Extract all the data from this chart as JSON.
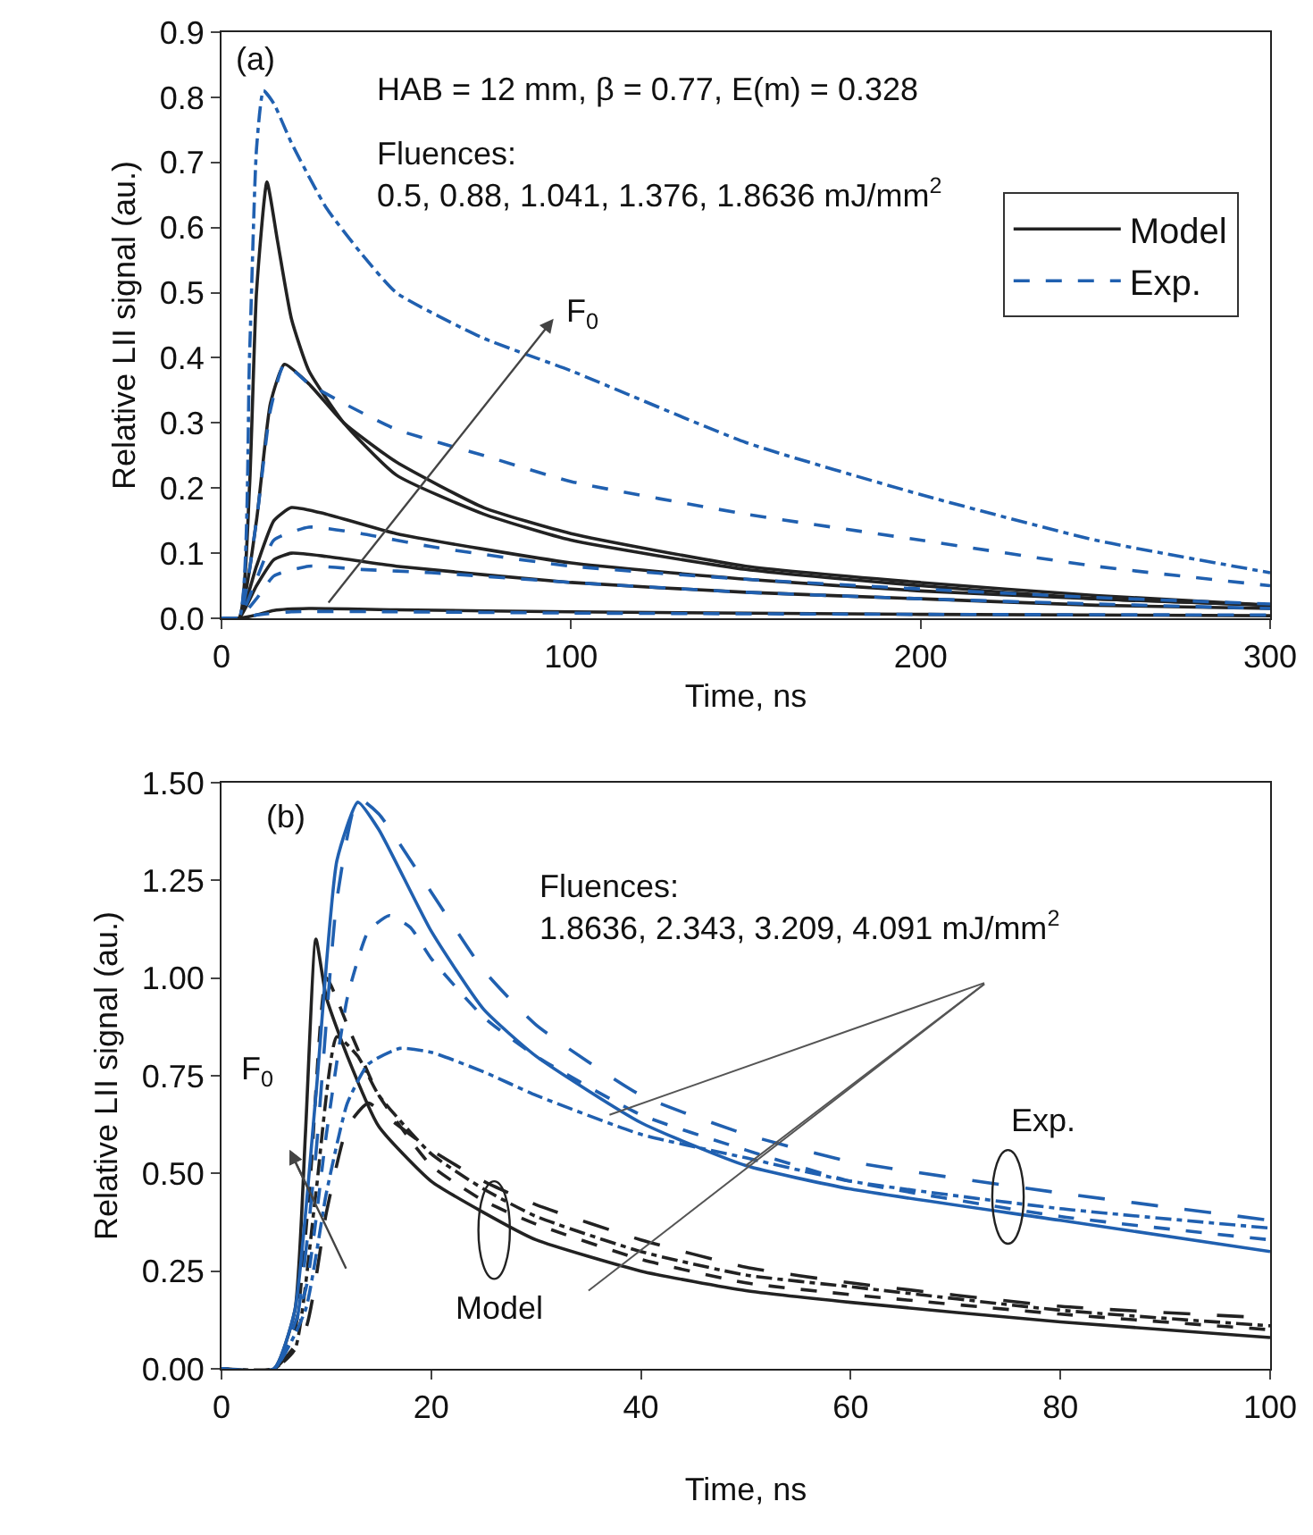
{
  "chart_data": [
    {
      "type": "line",
      "xlabel": "Time, ns",
      "ylabel": "Relative LII signal (au.)",
      "xlim": [
        0,
        300
      ],
      "xticks": [
        0,
        100,
        200,
        300
      ],
      "ylim": [
        0,
        0.9
      ],
      "yticks": [
        {
          "value": 0,
          "label": "0.0"
        },
        0.1,
        0.2,
        0.3,
        0.4,
        0.5,
        0.6,
        0.7,
        0.8,
        0.9
      ],
      "grid": false,
      "legend": "right",
      "annotations": [
        "(a)",
        "HAB = 12 mm, β = 0.77, E(m) = 0.328",
        "Fluences:\n0.5, 0.88, 1.041, 1.376, 1.8636 mJ/mm$^{2}$",
        "F$_{0}$"
      ],
      "series": [
        {
          "name": "Model",
          "color": "#222222",
          "line_style": "solid",
          "x": [
            0,
            5,
            10,
            15,
            25,
            50,
            100,
            200,
            300
          ],
          "values": [
            0,
            0,
            0.005,
            0.012,
            0.015,
            0.013,
            0.01,
            0.006,
            0.004
          ]
        },
        {
          "color": "#222222",
          "line_style": "solid",
          "x": [
            0,
            5,
            10,
            15,
            20,
            30,
            50,
            100,
            150,
            200,
            250,
            300
          ],
          "values": [
            0,
            0,
            0.05,
            0.09,
            0.1,
            0.095,
            0.08,
            0.055,
            0.04,
            0.03,
            0.02,
            0.015
          ]
        },
        {
          "color": "#222222",
          "line_style": "solid",
          "x": [
            0,
            5,
            10,
            15,
            20,
            30,
            50,
            100,
            150,
            200,
            250,
            300
          ],
          "values": [
            0,
            0,
            0.08,
            0.15,
            0.17,
            0.16,
            0.13,
            0.085,
            0.06,
            0.042,
            0.03,
            0.02
          ]
        },
        {
          "color": "#222222",
          "line_style": "solid",
          "x": [
            0,
            5,
            10,
            14,
            18,
            25,
            35,
            50,
            75,
            100,
            150,
            200,
            250,
            300
          ],
          "values": [
            0,
            0,
            0.15,
            0.33,
            0.39,
            0.36,
            0.3,
            0.24,
            0.17,
            0.13,
            0.08,
            0.055,
            0.035,
            0.02
          ]
        },
        {
          "color": "#222222",
          "line_style": "solid",
          "x": [
            0,
            5,
            8,
            10,
            13,
            16,
            20,
            25,
            35,
            50,
            75,
            100,
            150,
            200,
            250,
            300
          ],
          "values": [
            0,
            0,
            0.2,
            0.5,
            0.67,
            0.58,
            0.46,
            0.38,
            0.3,
            0.22,
            0.16,
            0.12,
            0.075,
            0.05,
            0.03,
            0.02
          ]
        },
        {
          "name": "Exp.",
          "color": "#2060b0",
          "line_style": "dashed",
          "x": [
            0,
            5,
            10,
            20,
            50,
            100,
            200,
            300
          ],
          "values": [
            0,
            0,
            0.005,
            0.01,
            0.01,
            0.008,
            0.006,
            0.005
          ]
        },
        {
          "color": "#2060b0",
          "line_style": "dashed",
          "x": [
            0,
            5,
            10,
            15,
            25,
            40,
            60,
            100,
            150,
            200,
            250,
            300
          ],
          "values": [
            0,
            0,
            0.03,
            0.065,
            0.08,
            0.075,
            0.07,
            0.055,
            0.04,
            0.03,
            0.022,
            0.015
          ]
        },
        {
          "color": "#2060b0",
          "line_style": "dashed",
          "x": [
            0,
            5,
            10,
            15,
            25,
            40,
            60,
            100,
            150,
            200,
            250,
            300
          ],
          "values": [
            0,
            0,
            0.06,
            0.12,
            0.14,
            0.13,
            0.11,
            0.08,
            0.06,
            0.045,
            0.032,
            0.022
          ]
        },
        {
          "color": "#2060b0",
          "line_style": "dashed",
          "x": [
            0,
            5,
            10,
            14,
            18,
            25,
            35,
            50,
            75,
            100,
            150,
            200,
            250,
            300
          ],
          "values": [
            0,
            0,
            0.15,
            0.32,
            0.39,
            0.36,
            0.33,
            0.29,
            0.25,
            0.21,
            0.16,
            0.12,
            0.08,
            0.05
          ]
        },
        {
          "color": "#2060b0",
          "line_style": "dashdot",
          "x": [
            0,
            5,
            8,
            10,
            12,
            15,
            20,
            30,
            40,
            50,
            75,
            100,
            150,
            200,
            250,
            300
          ],
          "values": [
            0,
            0,
            0.4,
            0.72,
            0.81,
            0.79,
            0.73,
            0.63,
            0.56,
            0.5,
            0.43,
            0.38,
            0.27,
            0.19,
            0.12,
            0.07
          ]
        }
      ]
    },
    {
      "type": "line",
      "xlabel": "Time, ns",
      "ylabel": "Relative LII signal (au.)",
      "xlim": [
        0,
        100
      ],
      "xticks": [
        0,
        20,
        40,
        60,
        80,
        100
      ],
      "ylim": [
        0,
        1.5
      ],
      "yticks": [
        {
          "value": 0,
          "label": "0.00"
        },
        {
          "value": 0.25,
          "label": "0.25"
        },
        {
          "value": 0.5,
          "label": "0.50"
        },
        {
          "value": 0.75,
          "label": "0.75"
        },
        {
          "value": 1,
          "label": "1.00"
        },
        {
          "value": 1.25,
          "label": "1.25"
        },
        {
          "value": 1.5,
          "label": "1.50"
        }
      ],
      "grid": false,
      "annotations": [
        "(b)",
        {
          "text": "Fluences:\n1.8636, 2.343, 3.209, 4.091 mJ/mm$^{2}$",
          "x": 50,
          "y": 0.52
        },
        "F$_{0}$",
        "Model",
        "Exp."
      ],
      "series": [
        {
          "color": "#222222",
          "line_style": "solid",
          "x": [
            0,
            5,
            7,
            8,
            9,
            10,
            12,
            15,
            20,
            25,
            30,
            40,
            50,
            60,
            80,
            100
          ],
          "values": [
            0,
            0,
            0.15,
            0.6,
            1.1,
            0.95,
            0.8,
            0.62,
            0.48,
            0.4,
            0.33,
            0.25,
            0.2,
            0.17,
            0.12,
            0.08
          ]
        },
        {
          "color": "#222222",
          "line_style": "dashed",
          "x": [
            0,
            5,
            7,
            8.5,
            10,
            12,
            15,
            20,
            25,
            30,
            40,
            50,
            60,
            80,
            100
          ],
          "values": [
            0,
            0,
            0.1,
            0.5,
            1,
            0.88,
            0.7,
            0.52,
            0.43,
            0.37,
            0.28,
            0.22,
            0.19,
            0.14,
            0.1
          ]
        },
        {
          "color": "#222222",
          "line_style": "dashdot",
          "x": [
            0,
            5,
            7,
            9,
            11,
            13,
            15,
            20,
            25,
            30,
            40,
            50,
            60,
            80,
            100
          ],
          "values": [
            0,
            0,
            0.05,
            0.45,
            0.85,
            0.8,
            0.7,
            0.55,
            0.46,
            0.39,
            0.3,
            0.24,
            0.21,
            0.15,
            0.11
          ]
        },
        {
          "color": "#222222",
          "line_style": "longdash",
          "x": [
            0,
            5,
            8,
            10,
            12,
            14,
            16,
            20,
            25,
            30,
            40,
            50,
            60,
            80,
            100
          ],
          "values": [
            0,
            0,
            0.1,
            0.4,
            0.62,
            0.68,
            0.64,
            0.56,
            0.48,
            0.42,
            0.33,
            0.26,
            0.22,
            0.16,
            0.13
          ]
        },
        {
          "color": "#2060b0",
          "line_style": "solid",
          "x": [
            0,
            5,
            7,
            9,
            11,
            13,
            15,
            20,
            25,
            30,
            40,
            50,
            60,
            80,
            100
          ],
          "values": [
            0,
            0,
            0.15,
            0.7,
            1.3,
            1.45,
            1.38,
            1.12,
            0.92,
            0.8,
            0.63,
            0.52,
            0.46,
            0.38,
            0.3
          ]
        },
        {
          "color": "#2060b0",
          "line_style": "longdash",
          "x": [
            0,
            5,
            7,
            9,
            11,
            13,
            15,
            20,
            25,
            30,
            40,
            50,
            60,
            80,
            100
          ],
          "values": [
            0,
            0,
            0.1,
            0.55,
            1.2,
            1.46,
            1.42,
            1.22,
            1.02,
            0.88,
            0.7,
            0.6,
            0.53,
            0.45,
            0.38
          ]
        },
        {
          "color": "#2060b0",
          "line_style": "dashed",
          "x": [
            0,
            5,
            8,
            10,
            12,
            14,
            16,
            18,
            20,
            25,
            30,
            40,
            50,
            60,
            80,
            100
          ],
          "values": [
            0,
            0,
            0.2,
            0.6,
            0.95,
            1.12,
            1.16,
            1.13,
            1.05,
            0.9,
            0.8,
            0.65,
            0.56,
            0.48,
            0.39,
            0.33
          ]
        },
        {
          "color": "#2060b0",
          "line_style": "dashdot",
          "x": [
            0,
            5,
            8,
            10,
            12,
            14,
            17,
            20,
            25,
            30,
            40,
            50,
            60,
            80,
            100
          ],
          "values": [
            0,
            0,
            0.15,
            0.45,
            0.68,
            0.78,
            0.82,
            0.81,
            0.76,
            0.7,
            0.6,
            0.54,
            0.48,
            0.41,
            0.36
          ]
        }
      ]
    }
  ]
}
